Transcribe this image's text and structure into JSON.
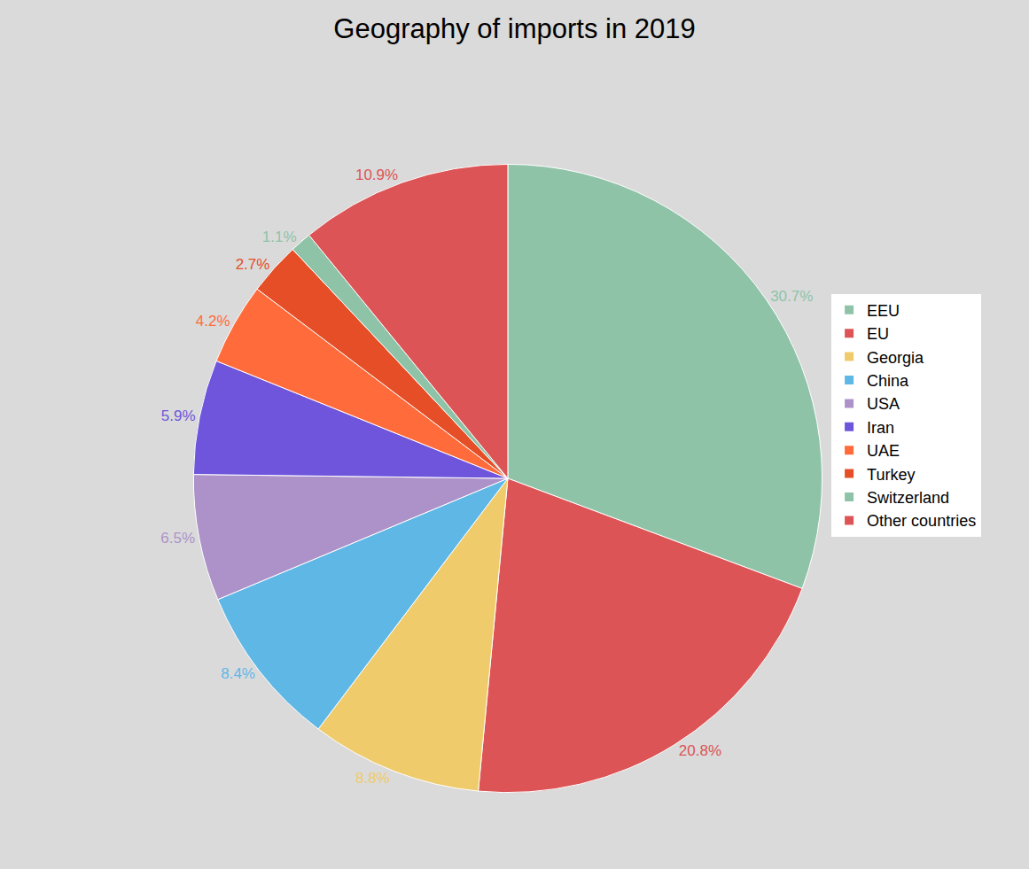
{
  "chart_data": {
    "type": "pie",
    "title": "Geography of imports in 2019",
    "categories": [
      "EEU",
      "EU",
      "Georgia",
      "China",
      "USA",
      "Iran",
      "UAE",
      "Turkey",
      "Switzerland",
      "Other countries"
    ],
    "values": [
      30.7,
      20.8,
      8.8,
      8.4,
      6.5,
      5.9,
      4.2,
      2.7,
      1.1,
      10.9
    ],
    "value_labels": [
      "30.7%",
      "20.8%",
      "8.8%",
      "8.4%",
      "6.5%",
      "5.9%",
      "4.2%",
      "2.7%",
      "1.1%",
      "10.9%"
    ],
    "colors": [
      "#8fc3a8",
      "#dc5456",
      "#efcb6b",
      "#5fb7e6",
      "#ad92c9",
      "#6e55dc",
      "#ff6b3a",
      "#e54e26",
      "#8fc3a8",
      "#dc5456"
    ],
    "data_labels": true,
    "legend": "right"
  }
}
